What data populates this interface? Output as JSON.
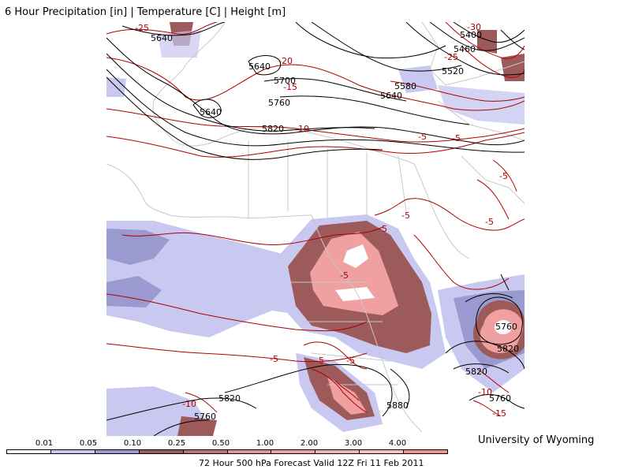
{
  "title": "6 Hour Precipitation [in] | Temperature [C] | Height [m]",
  "credit": "University of Wyoming",
  "footer": "72 Hour 500 hPa Forecast Valid 12Z Fri 11 Feb 2011",
  "colors": {
    "precip_light": "#c8c8f0",
    "precip_med": "#9a9ad0",
    "precip_dark": "#9c5a5a",
    "precip_heavy": "#f0a0a0",
    "height_contour": "#000000",
    "temp_contour": "#b00000",
    "country_border": "#c8c8c8"
  },
  "precip_scale": {
    "labels": [
      "0.01",
      "0.05",
      "0.10",
      "0.25",
      "0.50",
      "1.00",
      "2.00",
      "3.00",
      "4.00"
    ],
    "colors": [
      "#ffffff",
      "#c8c8f0",
      "#9a9ad0",
      "#9c5a5a",
      "#c07070",
      "#e89090",
      "#f0a0a0",
      "#f4b0b0",
      "#f8c0c0",
      "#f09090"
    ]
  },
  "height_labels": [
    "5640",
    "5640",
    "5640",
    "5700",
    "5760",
    "5820",
    "5400",
    "5460",
    "5520",
    "5580",
    "5640",
    "5760",
    "5820",
    "5820",
    "5760",
    "5820",
    "5760",
    "5880"
  ],
  "temp_labels": [
    "-25",
    "-20",
    "-15",
    "-10",
    "-30",
    "-25",
    "-5",
    "-5",
    "-5",
    "-5",
    "-5",
    "-5",
    "-5",
    "-5",
    "-5",
    "-5",
    "-10",
    "-10",
    "-15"
  ]
}
